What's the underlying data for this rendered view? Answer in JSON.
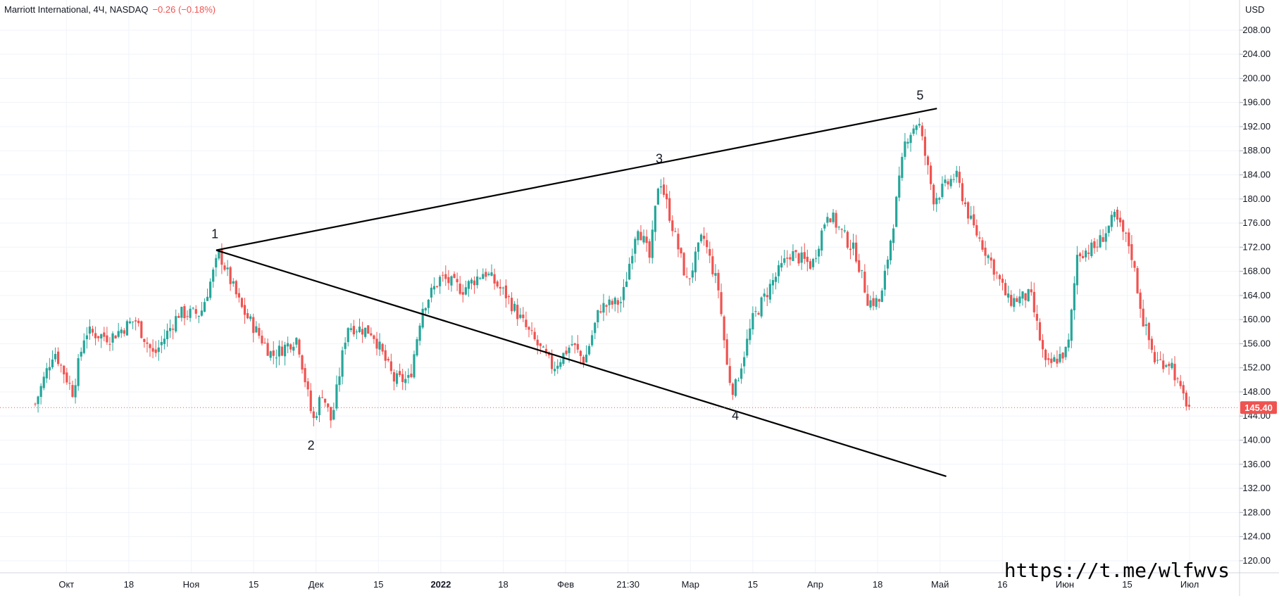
{
  "header": {
    "symbol": "Marriott International, 4Ч, NASDAQ",
    "change": "−0.26 (−0.18%)"
  },
  "watermark": "https://t.me/wlfwvs",
  "colors": {
    "up": "#26a69a",
    "down": "#ef5350",
    "line": "#000000",
    "grid": "#f0f3fa",
    "price_tag": "#ef5350"
  },
  "chart_data": {
    "type": "candlestick",
    "currency": "USD",
    "last_price": 145.4,
    "last_price_label": "145.40",
    "ylim": [
      118,
      213
    ],
    "y_ticks": [
      "208.00",
      "204.00",
      "200.00",
      "196.00",
      "192.00",
      "188.00",
      "184.00",
      "180.00",
      "176.00",
      "172.00",
      "168.00",
      "164.00",
      "160.00",
      "156.00",
      "152.00",
      "148.00",
      "144.00",
      "140.00",
      "136.00",
      "132.00",
      "128.00",
      "124.00",
      "120.00"
    ],
    "x_ticks": [
      {
        "label": "Окт",
        "t": 0.5
      },
      {
        "label": "18",
        "t": 1.5
      },
      {
        "label": "Ноя",
        "t": 2.5
      },
      {
        "label": "15",
        "t": 3.5
      },
      {
        "label": "Дек",
        "t": 4.5
      },
      {
        "label": "15",
        "t": 5.5
      },
      {
        "label": "2022",
        "t": 6.5
      },
      {
        "label": "18",
        "t": 7.5
      },
      {
        "label": "Фев",
        "t": 8.5
      },
      {
        "label": "21:30",
        "t": 9.5
      },
      {
        "label": "Мар",
        "t": 10.5
      },
      {
        "label": "15",
        "t": 11.5
      },
      {
        "label": "Апр",
        "t": 12.5
      },
      {
        "label": "18",
        "t": 13.5
      },
      {
        "label": "Май",
        "t": 14.5
      },
      {
        "label": "16",
        "t": 15.5
      },
      {
        "label": "Июн",
        "t": 16.5
      },
      {
        "label": "15",
        "t": 17.5
      },
      {
        "label": "Июл",
        "t": 18.5
      }
    ],
    "anchors": [
      {
        "t": 0.0,
        "p": 146
      },
      {
        "t": 0.3,
        "p": 155
      },
      {
        "t": 0.6,
        "p": 148
      },
      {
        "t": 0.8,
        "p": 158
      },
      {
        "t": 1.2,
        "p": 157
      },
      {
        "t": 1.6,
        "p": 160
      },
      {
        "t": 1.9,
        "p": 154
      },
      {
        "t": 2.3,
        "p": 161
      },
      {
        "t": 2.65,
        "p": 161
      },
      {
        "t": 2.95,
        "p": 171
      },
      {
        "t": 3.3,
        "p": 162
      },
      {
        "t": 3.8,
        "p": 154
      },
      {
        "t": 4.2,
        "p": 157
      },
      {
        "t": 4.45,
        "p": 143
      },
      {
        "t": 4.6,
        "p": 148
      },
      {
        "t": 4.75,
        "p": 143
      },
      {
        "t": 5.0,
        "p": 159
      },
      {
        "t": 5.4,
        "p": 158
      },
      {
        "t": 5.75,
        "p": 150
      },
      {
        "t": 6.0,
        "p": 150
      },
      {
        "t": 6.2,
        "p": 162
      },
      {
        "t": 6.5,
        "p": 167
      },
      {
        "t": 6.85,
        "p": 165
      },
      {
        "t": 7.2,
        "p": 168
      },
      {
        "t": 7.55,
        "p": 164
      },
      {
        "t": 7.9,
        "p": 158
      },
      {
        "t": 8.3,
        "p": 152
      },
      {
        "t": 8.6,
        "p": 156
      },
      {
        "t": 8.8,
        "p": 153
      },
      {
        "t": 9.05,
        "p": 162
      },
      {
        "t": 9.4,
        "p": 163
      },
      {
        "t": 9.65,
        "p": 176
      },
      {
        "t": 9.85,
        "p": 170
      },
      {
        "t": 10.0,
        "p": 184
      },
      {
        "t": 10.2,
        "p": 176
      },
      {
        "t": 10.45,
        "p": 166
      },
      {
        "t": 10.7,
        "p": 174
      },
      {
        "t": 10.95,
        "p": 165
      },
      {
        "t": 11.1,
        "p": 151
      },
      {
        "t": 11.2,
        "p": 148
      },
      {
        "t": 11.5,
        "p": 160
      },
      {
        "t": 11.8,
        "p": 166
      },
      {
        "t": 12.1,
        "p": 171
      },
      {
        "t": 12.45,
        "p": 169
      },
      {
        "t": 12.7,
        "p": 178
      },
      {
        "t": 12.95,
        "p": 174
      },
      {
        "t": 13.15,
        "p": 171
      },
      {
        "t": 13.35,
        "p": 163
      },
      {
        "t": 13.55,
        "p": 163
      },
      {
        "t": 13.75,
        "p": 176
      },
      {
        "t": 13.95,
        "p": 190
      },
      {
        "t": 14.15,
        "p": 193
      },
      {
        "t": 14.4,
        "p": 180
      },
      {
        "t": 14.75,
        "p": 184
      },
      {
        "t": 15.0,
        "p": 176
      },
      {
        "t": 15.3,
        "p": 170
      },
      {
        "t": 15.6,
        "p": 163
      },
      {
        "t": 15.95,
        "p": 164
      },
      {
        "t": 16.2,
        "p": 152
      },
      {
        "t": 16.55,
        "p": 155
      },
      {
        "t": 16.7,
        "p": 171
      },
      {
        "t": 17.0,
        "p": 172
      },
      {
        "t": 17.3,
        "p": 177
      },
      {
        "t": 17.55,
        "p": 172
      },
      {
        "t": 17.75,
        "p": 160
      },
      {
        "t": 17.95,
        "p": 153
      },
      {
        "t": 18.2,
        "p": 153
      },
      {
        "t": 18.35,
        "p": 148
      },
      {
        "t": 18.5,
        "p": 145.4
      }
    ],
    "trendlines": [
      {
        "name": "upper",
        "from": {
          "t": 2.9,
          "p": 171.5
        },
        "to": {
          "t": 14.45,
          "p": 195
        }
      },
      {
        "name": "lower",
        "from": {
          "t": 2.9,
          "p": 171.5
        },
        "to": {
          "t": 14.6,
          "p": 134
        }
      }
    ],
    "wave_labels": [
      {
        "label": "1",
        "t": 2.88,
        "p": 173,
        "pos": "above"
      },
      {
        "label": "2",
        "t": 4.42,
        "p": 140.5,
        "pos": "below"
      },
      {
        "label": "3",
        "t": 10.0,
        "p": 185.5,
        "pos": "above"
      },
      {
        "label": "4",
        "t": 11.22,
        "p": 145.5,
        "pos": "below"
      },
      {
        "label": "5",
        "t": 14.18,
        "p": 196,
        "pos": "above"
      }
    ]
  }
}
